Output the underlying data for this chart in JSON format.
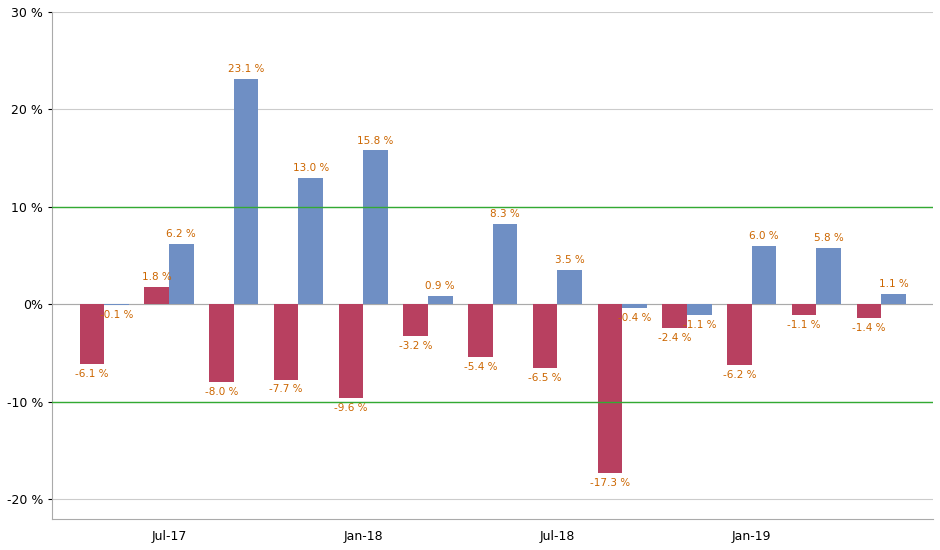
{
  "blue_values": [
    -0.1,
    6.2,
    23.1,
    13.0,
    15.8,
    0.9,
    8.3,
    3.5,
    -0.4,
    -1.1,
    6.0,
    5.8,
    1.1
  ],
  "red_values": [
    -6.1,
    1.8,
    -8.0,
    -7.7,
    -9.6,
    -3.2,
    -5.4,
    -6.5,
    -17.3,
    -2.4,
    -6.2,
    -1.1,
    -1.4
  ],
  "blue_labels": [
    "-0.1 %",
    "6.2 %",
    "23.1 %",
    "13.0 %",
    "15.8 %",
    "0.9 %",
    "8.3 %",
    "3.5 %",
    "-0.4 %",
    "-1.1 %",
    "6.0 %",
    "5.8 %",
    "1.1 %"
  ],
  "red_labels": [
    "-6.1 %",
    "1.8 %",
    "-8.0 %",
    "-7.7 %",
    "-9.6 %",
    "-3.2 %",
    "-5.4 %",
    "-6.5 %",
    "-17.3 %",
    "-2.4 %",
    "-6.2 %",
    "-1.1 %",
    "-1.4 %"
  ],
  "n_groups": 13,
  "xtick_indices": [
    1,
    4,
    7,
    10
  ],
  "xtick_labels": [
    "Jul-17",
    "Jan-18",
    "Jul-18",
    "Jan-19"
  ],
  "ylim": [
    -22,
    30
  ],
  "yticks": [
    -20,
    -10,
    0,
    10,
    20,
    30
  ],
  "ytick_labels": [
    "-20 %",
    "-10 %",
    "0%",
    "10 %",
    "20 %",
    "30 %"
  ],
  "bar_width": 0.38,
  "blue_color": "#6f8fc4",
  "red_color": "#b84060",
  "hline_color": "#33aa33",
  "hline_positions": [
    10,
    -10
  ],
  "background_color": "#ffffff",
  "grid_color": "#cccccc",
  "label_fontsize": 7.5,
  "label_color": "#cc6600",
  "tick_fontsize": 9
}
